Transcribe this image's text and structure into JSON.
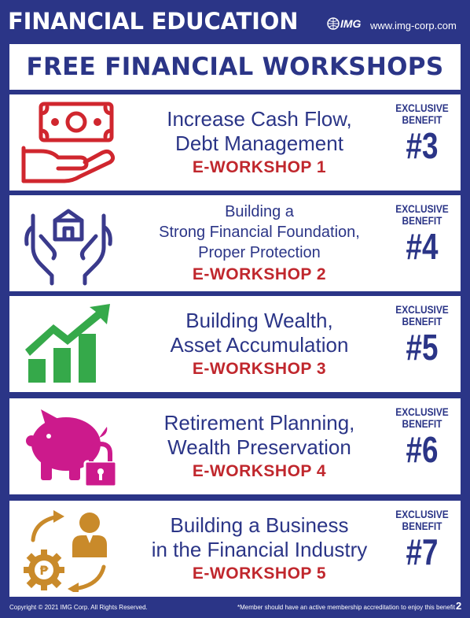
{
  "header": {
    "title": "FINANCIAL EDUCATION",
    "logo_text": "IMG",
    "url": "www.img-corp.com"
  },
  "banner": {
    "title": "FREE FINANCIAL WORKSHOPS"
  },
  "workshops": [
    {
      "icon": "cash-flow-icon",
      "title_lines": [
        "Increase Cash Flow,",
        "Debt Management"
      ],
      "workshop": "E-WORKSHOP 1",
      "benefit_label": "EXCLUSIVE BENEFIT",
      "benefit_number": "#3"
    },
    {
      "icon": "protection-icon",
      "title_lines": [
        "Building a",
        "Strong Financial Foundation,",
        "Proper Protection"
      ],
      "workshop": "E-WORKSHOP 2",
      "benefit_label": "EXCLUSIVE BENEFIT",
      "benefit_number": "#4"
    },
    {
      "icon": "growth-chart-icon",
      "title_lines": [
        "Building Wealth,",
        "Asset Accumulation"
      ],
      "workshop": "E-WORKSHOP 3",
      "benefit_label": "EXCLUSIVE BENEFIT",
      "benefit_number": "#5"
    },
    {
      "icon": "piggy-bank-lock-icon",
      "title_lines": [
        "Retirement Planning,",
        "Wealth Preservation"
      ],
      "workshop": "E-WORKSHOP 4",
      "benefit_label": "EXCLUSIVE BENEFIT",
      "benefit_number": "#6"
    },
    {
      "icon": "business-cycle-icon",
      "title_lines": [
        "Building a Business",
        "in the Financial Industry"
      ],
      "workshop": "E-WORKSHOP 5",
      "benefit_label": "EXCLUSIVE BENEFIT",
      "benefit_number": "#7"
    }
  ],
  "footer": {
    "copyright": "Copyright © 2021 IMG Corp. All Rights Reserved.",
    "note": "*Member should have an active membership accreditation to enjoy this benefit",
    "page": "2"
  },
  "colors": {
    "navy": "#2b3587",
    "red": "#c0272d",
    "cash_icon": "#d0262e",
    "protection_icon": "#3a3a8c",
    "growth_icon": "#35a94a",
    "piggy_icon": "#cc1a8c",
    "business_icon": "#c98a2a"
  }
}
